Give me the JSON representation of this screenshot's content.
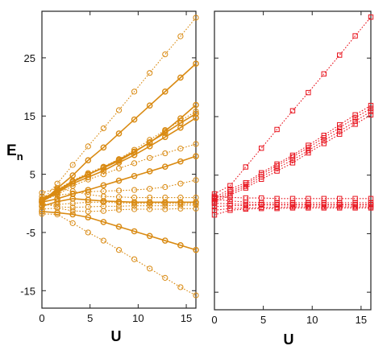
{
  "chart_data": [
    {
      "type": "line",
      "panel": "left",
      "xlabel": "U",
      "ylabel_main": "E",
      "ylabel_sub": "n",
      "xlim": [
        0,
        16
      ],
      "ylim": [
        -18,
        33
      ],
      "xticks": [
        0,
        5,
        10,
        15
      ],
      "yticks": [
        -15,
        -5,
        5,
        15,
        25
      ],
      "x_tick_labels": [
        "0",
        "5",
        "10",
        "15"
      ],
      "y_tick_labels": [
        "-15",
        "-5",
        "5",
        "15",
        "25"
      ],
      "grid": false,
      "color": "#d98a12",
      "marker": "circle",
      "x": [
        0,
        1.6,
        3.2,
        4.8,
        6.4,
        8.0,
        9.6,
        11.2,
        12.8,
        14.4,
        16.0
      ],
      "series": [
        {
          "values": [
            0.5,
            3.4,
            6.6,
            9.8,
            12.9,
            16.0,
            19.2,
            22.4,
            25.6,
            28.7,
            31.9
          ],
          "style": "dotted"
        },
        {
          "values": [
            0.2,
            2.6,
            4.8,
            7.4,
            9.6,
            12.0,
            14.4,
            16.8,
            19.2,
            21.6,
            24.0
          ],
          "style": "solid"
        },
        {
          "values": [
            0.6,
            2.4,
            3.9,
            5.2,
            6.3,
            7.6,
            9.2,
            10.9,
            12.6,
            14.2,
            15.8
          ],
          "style": "dotted"
        },
        {
          "values": [
            0.7,
            2.2,
            3.8,
            5.0,
            6.1,
            7.3,
            8.8,
            10.5,
            12.1,
            13.8,
            15.4
          ],
          "style": "solid"
        },
        {
          "values": [
            0.5,
            2.0,
            3.7,
            4.9,
            6.2,
            7.5,
            8.9,
            10.4,
            12.4,
            14.6,
            16.9
          ],
          "style": "solid"
        },
        {
          "values": [
            0.3,
            1.8,
            3.4,
            4.5,
            5.6,
            7.0,
            8.3,
            9.8,
            11.4,
            13.0,
            14.7
          ],
          "style": "solid"
        },
        {
          "values": [
            0.4,
            1.5,
            3.0,
            4.1,
            5.0,
            6.0,
            6.9,
            7.8,
            8.6,
            9.4,
            10.2
          ],
          "style": "dotted"
        },
        {
          "values": [
            0.2,
            0.8,
            1.6,
            2.3,
            3.1,
            3.9,
            4.7,
            5.5,
            6.3,
            7.2,
            8.1
          ],
          "style": "solid"
        },
        {
          "values": [
            1.8,
            2.6,
            2.1,
            1.5,
            1.2,
            1.1,
            1.0,
            1.0,
            1.0,
            1.0,
            1.0
          ],
          "style": "dotted"
        },
        {
          "values": [
            1.2,
            1.4,
            1.7,
            2.0,
            2.1,
            2.2,
            2.3,
            2.5,
            2.8,
            3.4,
            4.0
          ],
          "style": "dotted"
        },
        {
          "values": [
            -0.5,
            0.3,
            0.8,
            0.6,
            0.4,
            0.3,
            0.2,
            0.2,
            0.2,
            0.2,
            0.2
          ],
          "style": "solid"
        },
        {
          "values": [
            -0.3,
            -0.2,
            0.0,
            0.2,
            0.2,
            0.1,
            0.0,
            0.0,
            0.0,
            0.0,
            0.0
          ],
          "style": "dotted"
        },
        {
          "values": [
            0.0,
            -0.6,
            -0.7,
            -0.6,
            -0.5,
            -0.5,
            -0.4,
            -0.4,
            -0.4,
            -0.3,
            -0.3
          ],
          "style": "dotted"
        },
        {
          "values": [
            -1.0,
            -0.8,
            -1.3,
            -1.4,
            -1.3,
            -1.1,
            -1.0,
            -1.0,
            -1.0,
            -0.9,
            -0.9
          ],
          "style": "dotted"
        },
        {
          "values": [
            -1.4,
            -1.6,
            -1.9,
            -2.4,
            -3.2,
            -4.0,
            -4.8,
            -5.6,
            -6.4,
            -7.2,
            -8.0
          ],
          "style": "solid"
        },
        {
          "values": [
            -1.8,
            -1.9,
            -3.4,
            -5.0,
            -6.4,
            -8.0,
            -9.6,
            -11.2,
            -12.8,
            -14.4,
            -15.8
          ],
          "style": "dotted"
        }
      ]
    },
    {
      "type": "line",
      "panel": "right",
      "xlabel": "U",
      "xlim": [
        0,
        16
      ],
      "ylim": [
        -18,
        33
      ],
      "xticks": [
        0,
        5,
        10,
        15
      ],
      "x_tick_labels": [
        "0",
        "5",
        "10",
        "15"
      ],
      "grid": false,
      "color": "#e8141e",
      "marker": "square",
      "x": [
        0,
        1.6,
        3.2,
        4.8,
        6.4,
        8.0,
        9.6,
        11.2,
        12.8,
        14.4,
        16.0
      ],
      "series": [
        {
          "values": [
            1.8,
            3.2,
            6.4,
            9.6,
            12.8,
            16.0,
            19.1,
            22.3,
            25.5,
            28.8,
            32.0
          ],
          "style": "dotted"
        },
        {
          "values": [
            1.2,
            2.6,
            3.7,
            5.4,
            6.9,
            8.4,
            10.1,
            11.8,
            13.6,
            15.3,
            16.9
          ],
          "style": "dotted"
        },
        {
          "values": [
            0.9,
            2.2,
            3.4,
            5.1,
            6.6,
            8.1,
            9.7,
            11.4,
            13.1,
            14.8,
            16.4
          ],
          "style": "dotted"
        },
        {
          "values": [
            0.6,
            1.9,
            3.1,
            4.7,
            6.2,
            7.6,
            9.2,
            10.9,
            12.5,
            14.2,
            15.9
          ],
          "style": "dotted"
        },
        {
          "values": [
            0.3,
            1.6,
            2.8,
            4.3,
            5.7,
            7.1,
            8.8,
            10.4,
            12.0,
            13.7,
            15.3
          ],
          "style": "dotted"
        },
        {
          "values": [
            1.4,
            1.2,
            1.1,
            1.1,
            1.0,
            1.0,
            1.0,
            1.0,
            1.0,
            1.0,
            1.0
          ],
          "style": "dotted"
        },
        {
          "values": [
            0.9,
            0.6,
            0.4,
            0.3,
            0.3,
            0.3,
            0.3,
            0.3,
            0.3,
            0.3,
            0.3
          ],
          "style": "dotted"
        },
        {
          "values": [
            0.2,
            0.1,
            0.0,
            0.0,
            0.0,
            0.0,
            0.0,
            0.0,
            0.0,
            0.0,
            0.0
          ],
          "style": "dotted"
        },
        {
          "values": [
            -0.4,
            -0.2,
            -0.2,
            -0.1,
            -0.1,
            -0.1,
            -0.1,
            -0.1,
            -0.1,
            -0.1,
            -0.1
          ],
          "style": "dotted"
        },
        {
          "values": [
            -1.0,
            -0.7,
            -0.6,
            -0.5,
            -0.5,
            -0.4,
            -0.4,
            -0.4,
            -0.4,
            -0.4,
            -0.4
          ],
          "style": "dotted"
        },
        {
          "values": [
            -1.8,
            -1.0,
            -0.8,
            -0.7,
            -0.7,
            -0.6,
            -0.6,
            -0.6,
            -0.6,
            -0.6,
            -0.6
          ],
          "style": "dotted"
        }
      ]
    }
  ]
}
